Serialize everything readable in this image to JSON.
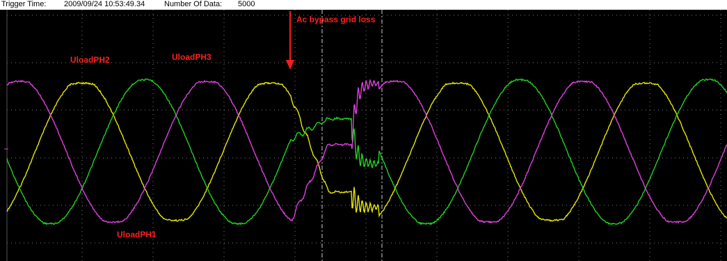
{
  "header": {
    "trigger_label": "Trigger Time:",
    "trigger_value": "2009/09/24  10:53:49.34",
    "count_label": "Number Of Data:",
    "count_value": "5000"
  },
  "colors": {
    "background": "#000000",
    "grid": "#7a7a7a",
    "label": "#ff2020",
    "cursor": "#cfcfcf",
    "arrow": "#ff1a1a"
  },
  "chart_data": {
    "type": "line",
    "title": "",
    "xlabel": "",
    "ylabel": "",
    "grid": true,
    "annotations": [
      {
        "text": "Ac bypass grid loss",
        "color": "#ff2020"
      }
    ],
    "series": [
      {
        "name": "UloadPH1",
        "color": "#e8e800"
      },
      {
        "name": "UloadPH2",
        "color": "#1fd31f"
      },
      {
        "name": "UloadPH3",
        "color": "#e040e0"
      }
    ]
  }
}
